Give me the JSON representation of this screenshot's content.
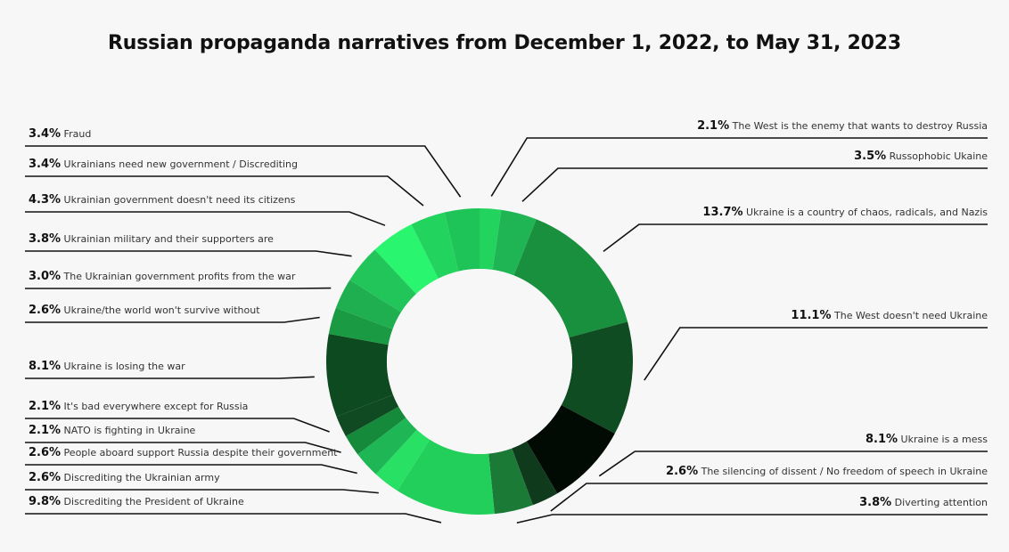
{
  "chart_data": {
    "type": "pie",
    "title": "Russian propaganda narratives from December 1, 2022, to May 31, 2023",
    "colors": {
      "background": "#f7f7f7",
      "palette": [
        "#2af56e",
        "#22d45e",
        "#1fbf55",
        "#18903d",
        "#0e4d22",
        "#020a04",
        "#11381c"
      ]
    },
    "slices": [
      {
        "pct": "2.1%",
        "value": 2.1,
        "label": "The West is the enemy that wants to destroy Russia",
        "color": "#22d45e"
      },
      {
        "pct": "3.5%",
        "value": 3.5,
        "label": "Russophobic Ukaine",
        "color": "#1fb554"
      },
      {
        "pct": "13.7%",
        "value": 13.7,
        "label": "Ukraine is a country of chaos, radicals, and Nazis",
        "color": "#18903d"
      },
      {
        "pct": "11.1%",
        "value": 11.1,
        "label": "The West doesn't need Ukraine",
        "color": "#0f4c22"
      },
      {
        "pct": "8.1%",
        "value": 8.1,
        "label": "Ukraine is a mess",
        "color": "#020a04"
      },
      {
        "pct": "2.6%",
        "value": 2.6,
        "label": "The silencing of dissent / No freedom of speech in Ukraine",
        "color": "#0f3a1c"
      },
      {
        "pct": "3.8%",
        "value": 3.8,
        "label": "Diverting attention",
        "color": "#1a7a36"
      },
      {
        "pct": "9.8%",
        "value": 9.8,
        "label": "Discrediting the President of Ukraine",
        "color": "#22cf5b"
      },
      {
        "pct": "2.6%",
        "value": 2.6,
        "label": "Discrediting the Ukrainian army",
        "color": "#27e064"
      },
      {
        "pct": "2.6%",
        "value": 2.6,
        "label": "People aboard support Russia despite their government",
        "color": "#1fb756"
      },
      {
        "pct": "2.1%",
        "value": 2.1,
        "label": "NATO is fighting in Ukraine",
        "color": "#168a3b"
      },
      {
        "pct": "2.1%",
        "value": 2.1,
        "label": "It's bad everywhere except for Russia",
        "color": "#0f4a22"
      },
      {
        "pct": "8.1%",
        "value": 8.1,
        "label": "Ukraine is losing the war",
        "color": "#0d4a1f"
      },
      {
        "pct": "2.6%",
        "value": 2.6,
        "label": "Ukraine/the world won't survive without",
        "color": "#1a9a43"
      },
      {
        "pct": "3.0%",
        "value": 3.0,
        "label": "The Ukrainian government profits from the war",
        "color": "#1fae50"
      },
      {
        "pct": "3.8%",
        "value": 3.8,
        "label": "Ukrainian military and their supporters are",
        "color": "#22c55a"
      },
      {
        "pct": "4.3%",
        "value": 4.3,
        "label": "Ukrainian government doesn't need its citizens",
        "color": "#2af56e"
      },
      {
        "pct": "3.4%",
        "value": 3.4,
        "label": "Ukrainians need new government / Discrediting",
        "color": "#22d45e"
      },
      {
        "pct": "3.4%",
        "value": 3.4,
        "label": "Fraud",
        "color": "#1fc458"
      }
    ]
  }
}
